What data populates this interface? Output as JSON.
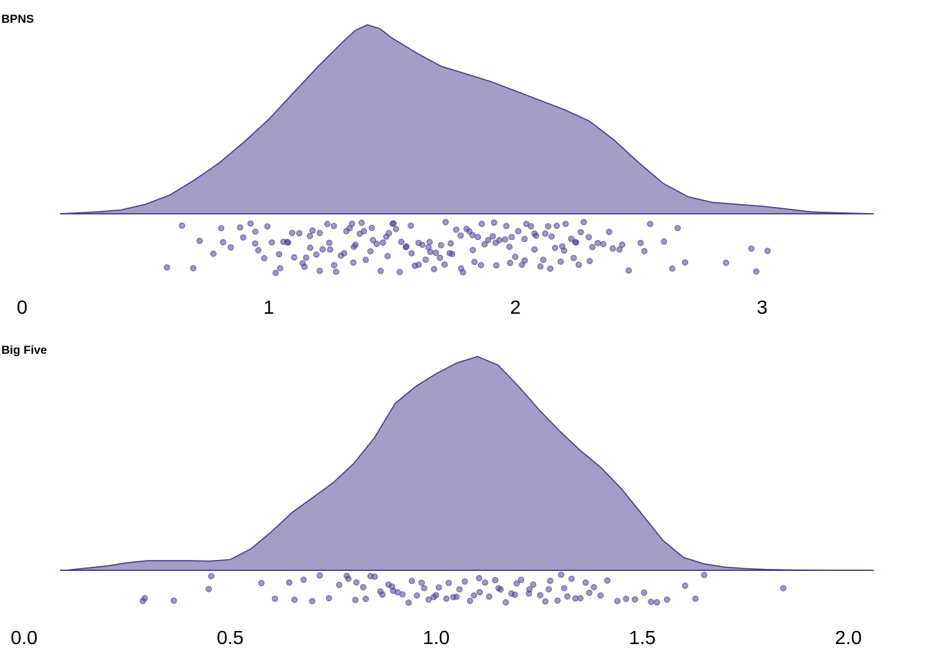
{
  "colors": {
    "fill": "#a29ec7",
    "line": "#3f3a82",
    "point": "#4b4594"
  },
  "chart_data": [
    {
      "type": "raincloud",
      "title": "BPNS",
      "xlim": [
        0,
        3.3
      ],
      "ticks": [
        "0",
        "1",
        "2",
        "3"
      ],
      "tick_values": [
        0,
        1,
        2,
        3
      ],
      "density": {
        "x": [
          0.15,
          0.3,
          0.4,
          0.5,
          0.6,
          0.7,
          0.8,
          0.9,
          1.0,
          1.1,
          1.2,
          1.3,
          1.35,
          1.4,
          1.45,
          1.5,
          1.6,
          1.7,
          1.8,
          1.9,
          2.0,
          2.1,
          2.2,
          2.3,
          2.4,
          2.5,
          2.6,
          2.7,
          2.8,
          2.9,
          3.0,
          3.1,
          3.2,
          3.3
        ],
        "y": [
          0.0,
          0.01,
          0.02,
          0.05,
          0.1,
          0.18,
          0.27,
          0.38,
          0.5,
          0.64,
          0.78,
          0.91,
          0.97,
          1.0,
          0.98,
          0.93,
          0.85,
          0.78,
          0.74,
          0.7,
          0.65,
          0.6,
          0.55,
          0.49,
          0.39,
          0.27,
          0.16,
          0.09,
          0.06,
          0.05,
          0.04,
          0.025,
          0.01,
          0.005
        ]
      },
      "points": [
        0.58,
        0.65,
        0.7,
        0.72,
        0.78,
        0.8,
        0.82,
        0.85,
        0.88,
        0.9,
        0.92,
        0.94,
        0.95,
        0.96,
        0.98,
        1.0,
        1.02,
        1.03,
        1.04,
        1.05,
        1.06,
        1.07,
        1.08,
        1.1,
        1.11,
        1.12,
        1.13,
        1.14,
        1.15,
        1.16,
        1.17,
        1.18,
        1.19,
        1.2,
        1.21,
        1.22,
        1.23,
        1.24,
        1.25,
        1.26,
        1.27,
        1.28,
        1.29,
        1.3,
        1.31,
        1.32,
        1.33,
        1.34,
        1.35,
        1.36,
        1.37,
        1.38,
        1.39,
        1.4,
        1.41,
        1.42,
        1.43,
        1.44,
        1.45,
        1.46,
        1.47,
        1.48,
        1.49,
        1.5,
        1.51,
        1.52,
        1.53,
        1.54,
        1.55,
        1.56,
        1.57,
        1.58,
        1.59,
        1.6,
        1.61,
        1.62,
        1.63,
        1.64,
        1.65,
        1.66,
        1.67,
        1.68,
        1.69,
        1.7,
        1.71,
        1.72,
        1.73,
        1.74,
        1.75,
        1.76,
        1.77,
        1.78,
        1.79,
        1.8,
        1.81,
        1.82,
        1.83,
        1.84,
        1.85,
        1.86,
        1.87,
        1.88,
        1.89,
        1.9,
        1.91,
        1.92,
        1.93,
        1.94,
        1.95,
        1.96,
        1.97,
        1.98,
        1.99,
        2.0,
        2.01,
        2.02,
        2.03,
        2.04,
        2.05,
        2.06,
        2.07,
        2.08,
        2.09,
        2.1,
        2.11,
        2.12,
        2.13,
        2.14,
        2.15,
        2.16,
        2.17,
        2.18,
        2.19,
        2.2,
        2.21,
        2.22,
        2.23,
        2.24,
        2.25,
        2.26,
        2.27,
        2.28,
        2.29,
        2.3,
        2.32,
        2.34,
        2.36,
        2.38,
        2.4,
        2.42,
        2.44,
        2.46,
        2.5,
        2.53,
        2.55,
        2.6,
        2.63,
        2.65,
        2.68,
        2.85,
        2.95,
        2.98,
        3.03
      ]
    },
    {
      "type": "raincloud",
      "title": "Big Five",
      "xlim": [
        0,
        2.05
      ],
      "ticks": [
        "0.0",
        "0.5",
        "1.0",
        "1.5",
        "2.0"
      ],
      "tick_values": [
        0,
        0.5,
        1,
        1.5,
        2
      ],
      "density": {
        "x": [
          0.1,
          0.2,
          0.25,
          0.3,
          0.35,
          0.4,
          0.45,
          0.5,
          0.55,
          0.6,
          0.65,
          0.7,
          0.75,
          0.8,
          0.85,
          0.9,
          0.95,
          1.0,
          1.05,
          1.1,
          1.15,
          1.2,
          1.25,
          1.3,
          1.35,
          1.4,
          1.45,
          1.5,
          1.55,
          1.6,
          1.65,
          1.7,
          1.75,
          1.8,
          1.85,
          1.9,
          1.95,
          2.0,
          2.05
        ],
        "y": [
          0.0,
          0.02,
          0.035,
          0.045,
          0.045,
          0.045,
          0.043,
          0.05,
          0.1,
          0.18,
          0.27,
          0.34,
          0.41,
          0.5,
          0.62,
          0.78,
          0.86,
          0.92,
          0.97,
          1.0,
          0.96,
          0.86,
          0.75,
          0.65,
          0.56,
          0.48,
          0.38,
          0.26,
          0.14,
          0.06,
          0.03,
          0.015,
          0.008,
          0.004,
          0.002,
          0.001,
          0.0,
          0.0,
          0.0
        ]
      },
      "points": [
        0.29,
        0.29,
        0.36,
        0.45,
        0.45,
        0.58,
        0.61,
        0.64,
        0.66,
        0.68,
        0.7,
        0.72,
        0.74,
        0.76,
        0.78,
        0.79,
        0.8,
        0.81,
        0.82,
        0.83,
        0.84,
        0.85,
        0.86,
        0.87,
        0.88,
        0.89,
        0.9,
        0.91,
        0.92,
        0.93,
        0.94,
        0.95,
        0.96,
        0.97,
        0.98,
        0.99,
        1.0,
        1.01,
        1.02,
        1.03,
        1.04,
        1.05,
        1.06,
        1.07,
        1.08,
        1.09,
        1.1,
        1.11,
        1.12,
        1.13,
        1.14,
        1.15,
        1.16,
        1.17,
        1.18,
        1.19,
        1.2,
        1.21,
        1.22,
        1.23,
        1.24,
        1.25,
        1.26,
        1.27,
        1.28,
        1.29,
        1.3,
        1.31,
        1.32,
        1.33,
        1.34,
        1.35,
        1.36,
        1.37,
        1.38,
        1.4,
        1.42,
        1.44,
        1.46,
        1.48,
        1.5,
        1.52,
        1.54,
        1.56,
        1.6,
        1.63,
        1.65,
        1.84
      ]
    }
  ]
}
